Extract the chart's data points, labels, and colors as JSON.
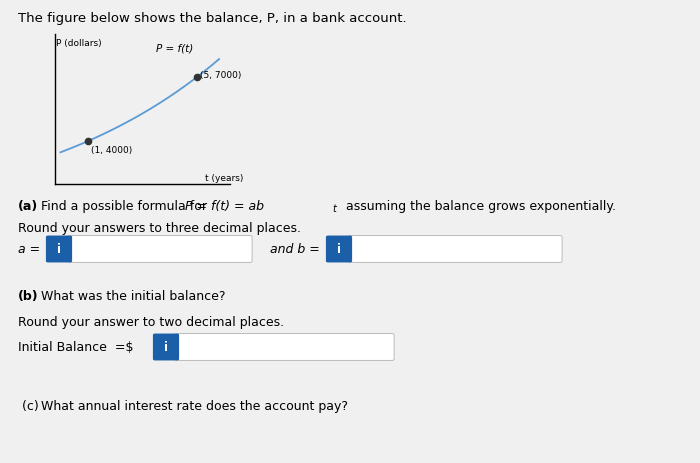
{
  "background_color": "#f0f0f0",
  "title_text": "The figure below shows the balance, P, in a bank account.",
  "title_fontsize": 9.5,
  "graph": {
    "ylabel": "P (dollars)",
    "xlabel": "t (years)",
    "curve_label": "P = f(t)",
    "point1": [
      1,
      4000
    ],
    "point2": [
      5,
      7000
    ],
    "point1_label": "(1, 4000)",
    "point2_label": "(5, 7000)"
  },
  "part_a_bold": "(a)",
  "part_a_text": " Find a possible formula for ",
  "part_a_math": "P = f(t) = ab",
  "part_a_super": "t",
  "part_a_end": " assuming the balance grows exponentially.",
  "round3_text": "Round your answers to three decimal places.",
  "a_label": "a =",
  "b_label": "and b =",
  "part_b_bold": "(b)",
  "part_b_text": " What was the initial balance?",
  "round2_text": "Round your answer to two decimal places.",
  "initial_balance_text": "Initial Balance  =$",
  "part_c_bold": "(c)",
  "part_c_text": " What annual interest rate does the account pay?",
  "button_color": "#1a5fa8",
  "button_text": "i",
  "button_text_color": "#ffffff",
  "input_box_color": "#ffffff",
  "input_border_color": "#bbbbbb",
  "text_color": "#000000"
}
